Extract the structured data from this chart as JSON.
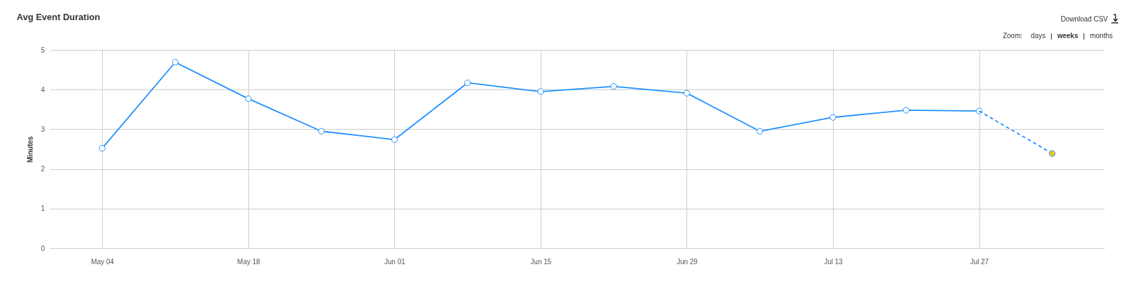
{
  "chart_data": {
    "type": "line",
    "title": "Avg Event Duration",
    "ylabel": "Minutes",
    "annotations": [
      "Download CSV",
      "Zoom:",
      "days",
      "weeks",
      "months"
    ],
    "x": [
      "--05-04",
      "--05-11",
      "--05-18",
      "--05-25",
      "--06-01",
      "--06-08",
      "--06-15",
      "--06-22",
      "--06-29",
      "--07-06",
      "--07-13",
      "--07-20",
      "--07-27"
    ],
    "series": [
      {
        "color": "#1e90ff",
        "line_style": "solid",
        "marker": "circle",
        "values": [
          2.52,
          4.69,
          3.77,
          2.95,
          2.74,
          4.17,
          3.95,
          4.08,
          3.91,
          2.95,
          3.3,
          3.48,
          3.46
        ]
      },
      {
        "type": "line",
        "color": "#1e90ff",
        "line_style": "dashed",
        "marker": "none",
        "x": [
          "--07-27",
          "--08-03"
        ],
        "values": [
          3.46,
          2.39
        ]
      },
      {
        "type": "scatter",
        "color": "#f5c518",
        "marker": "circle",
        "x": [
          "--08-03"
        ],
        "values": [
          2.39
        ]
      }
    ],
    "xlim": [
      "--04-29",
      "--08-08"
    ],
    "xticks": [
      {
        "value": "--05-04",
        "label": "May 04"
      },
      {
        "value": "--05-18",
        "label": "May 18"
      },
      {
        "value": "--06-01",
        "label": "Jun 01"
      },
      {
        "value": "--06-15",
        "label": "Jun 15"
      },
      {
        "value": "--06-29",
        "label": "Jun 29"
      },
      {
        "value": "--07-13",
        "label": "Jul 13"
      },
      {
        "value": "--07-27",
        "label": "Jul 27"
      }
    ],
    "ylim": [
      0,
      5
    ],
    "yticks": [
      0,
      1,
      2,
      3,
      4,
      5
    ],
    "grid": true
  }
}
